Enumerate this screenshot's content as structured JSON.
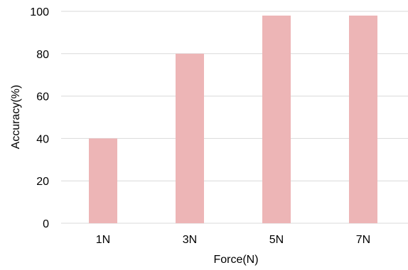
{
  "chart_data": {
    "type": "bar",
    "categories": [
      "1N",
      "3N",
      "5N",
      "7N"
    ],
    "values": [
      40,
      80,
      98,
      98
    ],
    "title": "",
    "xlabel": "Force(N)",
    "ylabel": "Accuracy(%)",
    "ylim": [
      0,
      100
    ],
    "yticks": [
      0,
      20,
      40,
      60,
      80,
      100
    ],
    "grid": true,
    "bar_color": "#edb5b6",
    "grid_color": "#d9d9d9"
  }
}
